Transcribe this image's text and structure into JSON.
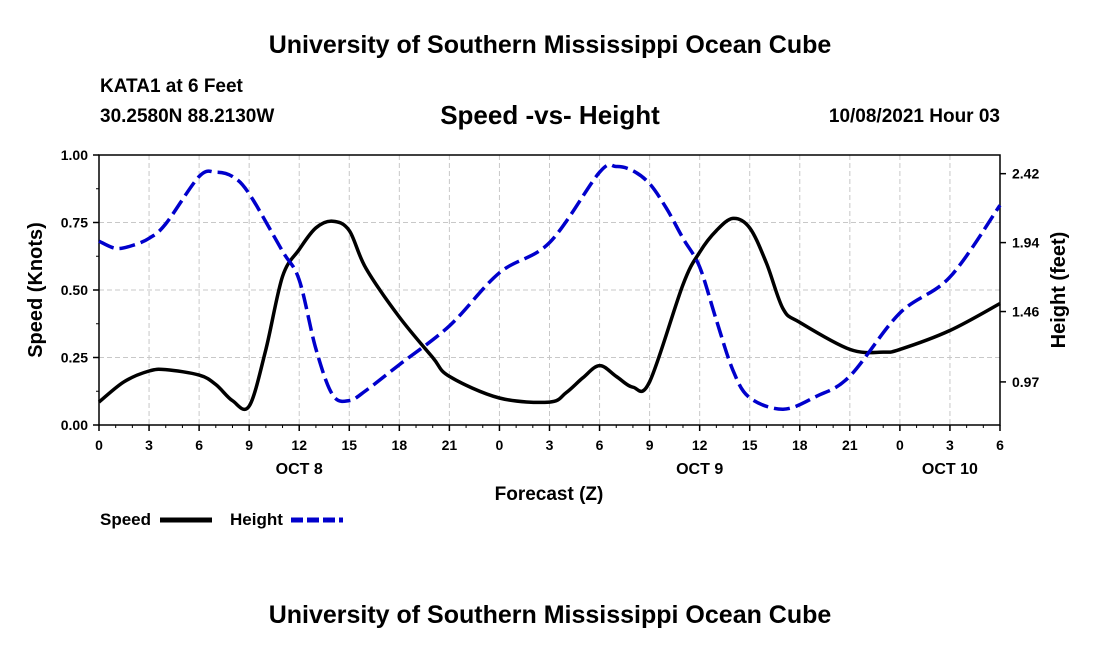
{
  "page": {
    "title_top": "University of Southern Mississippi Ocean Cube",
    "title_bottom": "University of Southern Mississippi Ocean Cube",
    "station": "KATA1 at 6 Feet",
    "coords": "30.2580N  88.2130W",
    "datetime": "10/08/2021 Hour 03"
  },
  "chart_data": {
    "type": "line",
    "title": "Speed -vs- Height",
    "xlabel": "Forecast (Z)",
    "ylabel": "Speed (Knots)",
    "y2label": "Height (feet)",
    "xlim": [
      0,
      54
    ],
    "ylim": [
      0,
      1.0
    ],
    "y2lim": [
      0.67,
      2.55
    ],
    "yticks": [
      0,
      0.25,
      0.5,
      0.75,
      1.0
    ],
    "ytick_labels": [
      "0.00",
      "0.25",
      "0.50",
      "0.75",
      "1.00"
    ],
    "y2ticks": [
      0.97,
      1.46,
      1.94,
      2.42
    ],
    "y2tick_labels": [
      "0.97",
      "1.46",
      "1.94",
      "2.42"
    ],
    "xticks": [
      0,
      3,
      6,
      9,
      12,
      15,
      18,
      21,
      24,
      27,
      30,
      33,
      36,
      39,
      42,
      45,
      48,
      51,
      54
    ],
    "xtick_labels": [
      "0",
      "3",
      "6",
      "9",
      "12",
      "15",
      "18",
      "21",
      "0",
      "3",
      "6",
      "9",
      "12",
      "15",
      "18",
      "21",
      "0",
      "3",
      "6"
    ],
    "day_labels": [
      {
        "x": 12,
        "label": "OCT 8"
      },
      {
        "x": 36,
        "label": "OCT 9"
      },
      {
        "x": 51,
        "label": "OCT 10"
      }
    ],
    "grid": true,
    "series": [
      {
        "name": "Speed",
        "axis": "left",
        "color": "#000000",
        "dash": "solid",
        "x": [
          0,
          1.5,
          3,
          4,
          6,
          7,
          8,
          9,
          10,
          11,
          12,
          13,
          14,
          15,
          16,
          18,
          20,
          21,
          24,
          27,
          28,
          29,
          30,
          31,
          32,
          33,
          35,
          36,
          37,
          38,
          39,
          40,
          41,
          42,
          45,
          47,
          48,
          51,
          54
        ],
        "values": [
          0.085,
          0.16,
          0.2,
          0.205,
          0.185,
          0.15,
          0.09,
          0.07,
          0.28,
          0.55,
          0.65,
          0.73,
          0.755,
          0.72,
          0.58,
          0.4,
          0.25,
          0.18,
          0.1,
          0.085,
          0.12,
          0.175,
          0.22,
          0.18,
          0.14,
          0.16,
          0.52,
          0.64,
          0.72,
          0.765,
          0.73,
          0.6,
          0.43,
          0.38,
          0.28,
          0.27,
          0.28,
          0.35,
          0.45
        ]
      },
      {
        "name": "Height",
        "axis": "right",
        "color": "#0000cc",
        "dash": "dashed",
        "x": [
          0,
          1,
          2,
          3,
          4,
          6,
          7,
          8,
          9,
          11,
          12,
          13,
          14,
          15,
          16,
          18,
          21,
          24,
          27,
          30,
          31,
          32,
          33,
          34,
          35,
          36,
          37,
          38,
          39,
          41,
          43,
          45,
          48,
          51,
          54
        ],
        "values": [
          1.95,
          1.9,
          1.92,
          1.97,
          2.07,
          2.4,
          2.43,
          2.4,
          2.28,
          1.88,
          1.68,
          1.2,
          0.88,
          0.84,
          0.91,
          1.09,
          1.36,
          1.73,
          1.94,
          2.43,
          2.47,
          2.44,
          2.35,
          2.18,
          1.97,
          1.77,
          1.4,
          1.05,
          0.86,
          0.78,
          0.87,
          1.01,
          1.45,
          1.7,
          2.2
        ]
      }
    ],
    "legend": [
      {
        "label": "Speed",
        "color": "#000000",
        "dash": "solid"
      },
      {
        "label": "Height",
        "color": "#0000cc",
        "dash": "dashed"
      }
    ]
  }
}
